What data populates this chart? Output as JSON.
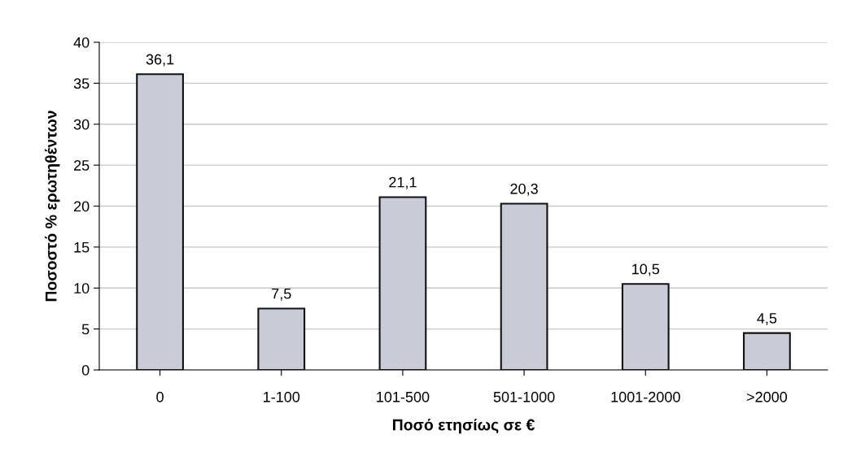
{
  "chart_data": {
    "type": "bar",
    "xlabel": "Ποσό ετησίως σε €",
    "ylabel": "Ποσοστό % ερωτηθέντων",
    "categories": [
      "0",
      "1-100",
      "101-500",
      "501-1000",
      "1001-2000",
      ">2000"
    ],
    "values": [
      36.1,
      7.5,
      21.1,
      20.3,
      10.5,
      4.5
    ],
    "value_labels": [
      "36,1",
      "7,5",
      "21,1",
      "20,3",
      "10,5",
      "4,5"
    ],
    "color": "#c9ccd6",
    "ylim": [
      0,
      40
    ],
    "yticks": [
      0,
      5,
      10,
      15,
      20,
      25,
      30,
      35,
      40
    ],
    "grid": "y",
    "legend": false
  }
}
